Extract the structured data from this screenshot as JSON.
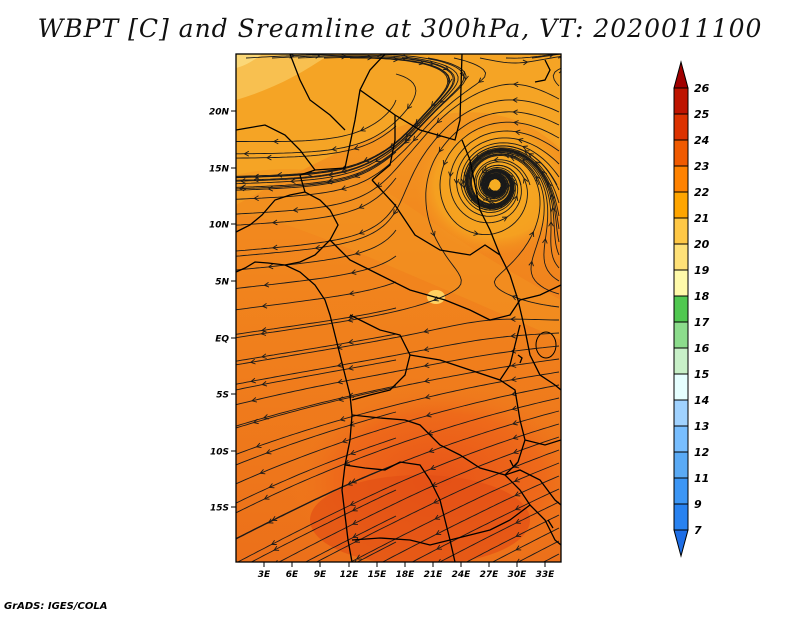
{
  "title": "WBPT [C] and Sreamline at 300hPa, VT: 2020011100",
  "credit": "GrADS: IGES/COLA",
  "map": {
    "variable": "Wet-bulb potential temperature",
    "units": "C",
    "level": "300hPa",
    "valid_time": "2020011100",
    "lat_labels": [
      "20N",
      "15N",
      "10N",
      "5N",
      "EQ",
      "5S",
      "10S",
      "15S"
    ],
    "lon_labels": [
      "3E",
      "6E",
      "9E",
      "12E",
      "15E",
      "18E",
      "21E",
      "24E",
      "27E",
      "30E",
      "33E"
    ],
    "features": {
      "cyclonic_circulation": "Center near 13N 27E",
      "max_wbpt_region": "Southern Africa 8S-18S, 24-25C",
      "min_wbpt_region": "Small spot near 4N 21E, 19-20C"
    }
  },
  "colorbar": {
    "labels": [
      "7",
      "9",
      "11",
      "12",
      "13",
      "14",
      "15",
      "16",
      "17",
      "18",
      "19",
      "20",
      "21",
      "22",
      "23",
      "24",
      "25",
      "26"
    ],
    "colors": [
      "#1e6ee6",
      "#2882f0",
      "#3c96f5",
      "#5aaaf5",
      "#78beff",
      "#a0d2ff",
      "#e6ffff",
      "#c8f0c8",
      "#8cdc8c",
      "#50c850",
      "#fffaaa",
      "#ffe178",
      "#ffc846",
      "#ffa500",
      "#ff8200",
      "#f05a00",
      "#dc3200",
      "#be1400",
      "#a00000"
    ]
  }
}
